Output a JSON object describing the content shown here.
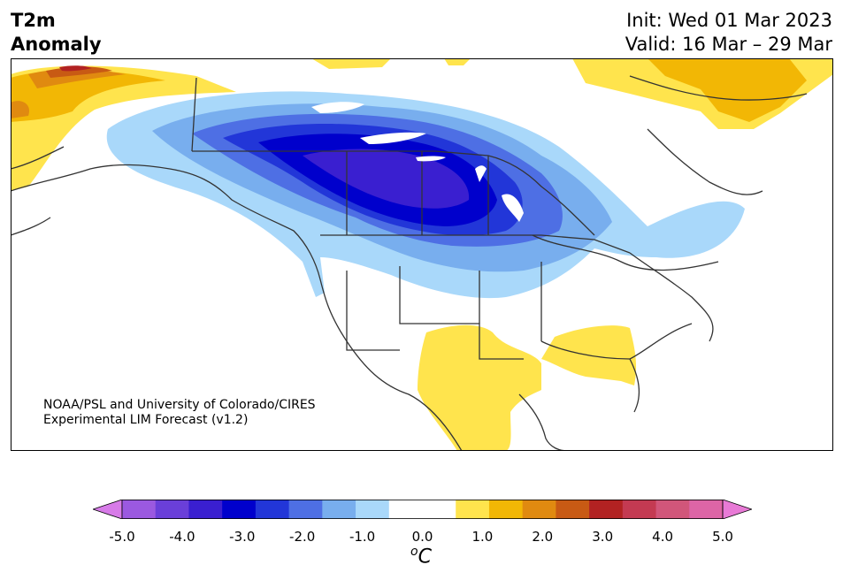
{
  "title": {
    "variable": "T2m",
    "type": "Anomaly",
    "init": "Init: Wed 01 Mar 2023",
    "valid": "Valid: 16 Mar – 29 Mar"
  },
  "credit": {
    "line1": "NOAA/PSL and University of Colorado/CIRES",
    "line2": "Experimental LIM Forecast (v1.2)"
  },
  "colorbar": {
    "ticks": [
      "-5.0",
      "-4.0",
      "-3.0",
      "-2.0",
      "-1.0",
      "0.0",
      "1.0",
      "2.0",
      "3.0",
      "4.0",
      "5.0"
    ],
    "unit_sup": "o",
    "unit": "C",
    "colors": [
      "#d77be8",
      "#9b59e0",
      "#6a3fd9",
      "#3a1fd0",
      "#0000cc",
      "#2236d8",
      "#4e6fe4",
      "#78aeee",
      "#a9d8fa",
      "#ffffff",
      "#ffffff",
      "#ffe44d",
      "#f2b705",
      "#e08a10",
      "#c85a14",
      "#b22222",
      "#c43a52",
      "#d1567a",
      "#dd65a6",
      "#e87ad6"
    ]
  },
  "map": {
    "region": "North America",
    "legend_colors": {
      "strong_cold": "#0000cc",
      "cold": "#2236d8",
      "moderate_cold": "#4e6fe4",
      "mild_cold": "#78aeee",
      "slight_cold": "#a9d8fa",
      "slight_warm": "#ffe44d",
      "warm": "#f2b705",
      "moderate_warm": "#e08a10",
      "strong_warm": "#c85a14",
      "very_warm": "#b22222"
    }
  }
}
